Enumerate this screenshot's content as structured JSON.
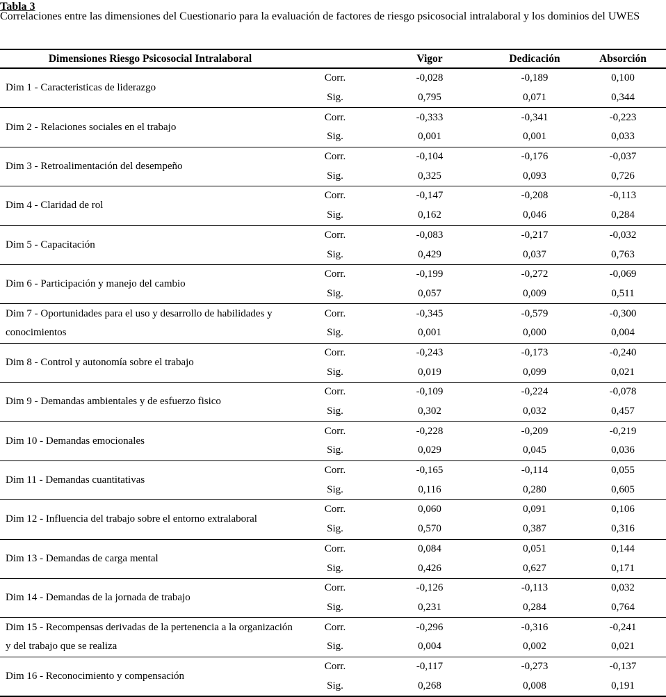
{
  "page_title": "Tabla 3",
  "caption": "Correlaciones entre las dimensiones del Cuestionario para la evaluación de factores de riesgo psicosocial intralaboral y los dominios del UWES",
  "table": {
    "header": {
      "dim_col": "Dimensiones Riesgo Psicosocial Intralaboral",
      "stat_col": "",
      "domains": [
        "Vigor",
        "Dedicación",
        "Absorción"
      ]
    },
    "row_labels": {
      "corr": "Corr.",
      "sig": "Sig."
    },
    "rows": [
      {
        "dim": "Dim 1 - Caracteristicas de liderazgo",
        "corr": [
          "-0,028",
          "-0,189",
          "0,100"
        ],
        "sig": [
          "0,795",
          "0,071",
          "0,344"
        ]
      },
      {
        "dim": "Dim 2 - Relaciones sociales en el trabajo",
        "corr": [
          "-0,333",
          "-0,341",
          "-0,223"
        ],
        "sig": [
          "0,001",
          "0,001",
          "0,033"
        ]
      },
      {
        "dim": "Dim 3 - Retroalimentación del desempeño",
        "corr": [
          "-0,104",
          "-0,176",
          "-0,037"
        ],
        "sig": [
          "0,325",
          "0,093",
          "0,726"
        ]
      },
      {
        "dim": "Dim 4 - Claridad de rol",
        "corr": [
          "-0,147",
          "-0,208",
          "-0,113"
        ],
        "sig": [
          "0,162",
          "0,046",
          "0,284"
        ]
      },
      {
        "dim": "Dim 5 - Capacitación",
        "corr": [
          "-0,083",
          "-0,217",
          "-0,032"
        ],
        "sig": [
          "0,429",
          "0,037",
          "0,763"
        ]
      },
      {
        "dim": "Dim 6 - Participación y manejo del cambio",
        "corr": [
          "-0,199",
          "-0,272",
          "-0,069"
        ],
        "sig": [
          "0,057",
          "0,009",
          "0,511"
        ]
      },
      {
        "dim": "Dim 7 - Oportunidades para el uso y desarrollo de habilidades y conocimientos",
        "corr": [
          "-0,345",
          "-0,579",
          "-0,300"
        ],
        "sig": [
          "0,001",
          "0,000",
          "0,004"
        ]
      },
      {
        "dim": "Dim 8 - Control y autonomía sobre el trabajo",
        "corr": [
          "-0,243",
          "-0,173",
          "-0,240"
        ],
        "sig": [
          "0,019",
          "0,099",
          "0,021"
        ]
      },
      {
        "dim": "Dim 9 - Demandas ambientales y de esfuerzo fisico",
        "corr": [
          "-0,109",
          "-0,224",
          "-0,078"
        ],
        "sig": [
          "0,302",
          "0,032",
          "0,457"
        ]
      },
      {
        "dim": "Dim 10 - Demandas emocionales",
        "corr": [
          "-0,228",
          "-0,209",
          "-0,219"
        ],
        "sig": [
          "0,029",
          "0,045",
          "0,036"
        ]
      },
      {
        "dim": "Dim 11 - Demandas cuantitativas",
        "corr": [
          "-0,165",
          "-0,114",
          "0,055"
        ],
        "sig": [
          "0,116",
          "0,280",
          "0,605"
        ]
      },
      {
        "dim": "Dim 12 - Influencia del trabajo sobre el entorno extralaboral",
        "corr": [
          "0,060",
          "0,091",
          "0,106"
        ],
        "sig": [
          "0,570",
          "0,387",
          "0,316"
        ]
      },
      {
        "dim": "Dim 13 - Demandas de carga mental",
        "corr": [
          "0,084",
          "0,051",
          "0,144"
        ],
        "sig": [
          "0,426",
          "0,627",
          "0,171"
        ]
      },
      {
        "dim": "Dim 14 - Demandas de la jornada de trabajo",
        "corr": [
          "-0,126",
          "-0,113",
          "0,032"
        ],
        "sig": [
          "0,231",
          "0,284",
          "0,764"
        ]
      },
      {
        "dim": "Dim 15 - Recompensas derivadas de la pertenencia a la organización y del trabajo que se realiza",
        "corr": [
          "-0,296",
          "-0,316",
          "-0,241"
        ],
        "sig": [
          "0,004",
          "0,002",
          "0,021"
        ]
      },
      {
        "dim": "Dim 16 - Reconocimiento y compensación",
        "corr": [
          "-0,117",
          "-0,273",
          "-0,137"
        ],
        "sig": [
          "0,268",
          "0,008",
          "0,191"
        ]
      }
    ]
  }
}
